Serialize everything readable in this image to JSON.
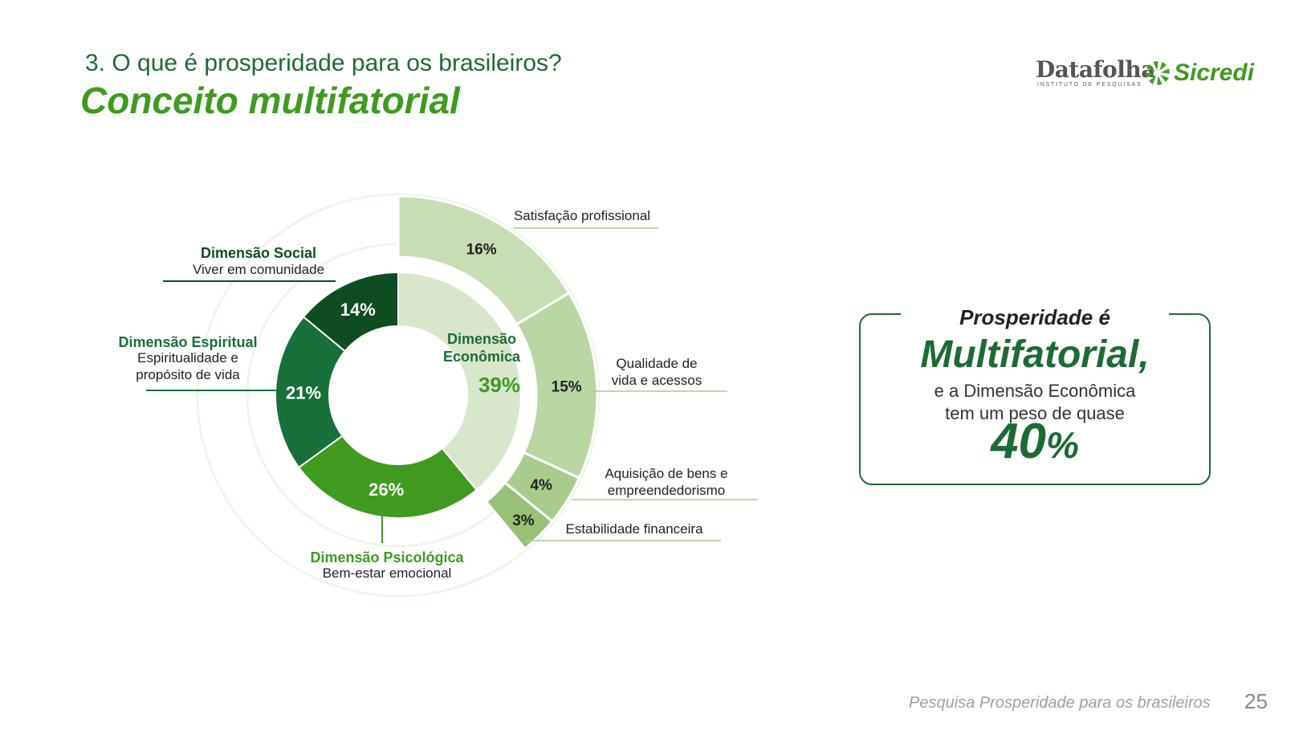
{
  "header": {
    "subtitle": "3. O que é prosperidade para os brasileiros?",
    "title": "Conceito multifatorial"
  },
  "logos": {
    "datafolha_name": "Datafolha",
    "datafolha_tagline": "INSTITUTO DE PESQUISAS",
    "sicredi_name": "Sicredi"
  },
  "colors": {
    "dark_green": "#1c6b35",
    "brand_green": "#3e9b1f",
    "social": "#0d4d21",
    "espiritual": "#17703a",
    "psicologica": "#3e9b1f",
    "economica": "#d8e7cc",
    "sub_slices": [
      "#c7ddb4",
      "#bad6a3",
      "#a9cc8d",
      "#97c176"
    ]
  },
  "chart_data": {
    "type": "pie",
    "inner_ring": [
      {
        "name": "Dimensão Econômica",
        "short": [
          "Dimensão",
          "Econômica"
        ],
        "value": 39,
        "label": "39%"
      },
      {
        "name": "Dimensão Psicológica",
        "description": "Bem-estar emocional",
        "value": 26,
        "label": "26%"
      },
      {
        "name": "Dimensão Espiritual",
        "description": [
          "Espiritualidade e",
          "propósito de vida"
        ],
        "value": 21,
        "label": "21%"
      },
      {
        "name": "Dimensão Social",
        "description": "Viver em comunidade",
        "value": 14,
        "label": "14%"
      }
    ],
    "outer_ring": [
      {
        "name": "Satisfação profissional",
        "value": 16,
        "label": "16%"
      },
      {
        "name": [
          "Qualidade de",
          "vida e acessos"
        ],
        "value": 15,
        "label": "15%"
      },
      {
        "name": [
          "Aquisição de bens e",
          "empreendedorismo"
        ],
        "value": 4,
        "label": "4%"
      },
      {
        "name": "Estabilidade financeira",
        "value": 3,
        "label": "3%"
      }
    ]
  },
  "callout": {
    "line1": "Prosperidade é",
    "line2": "Multifatorial,",
    "line3": "e a Dimensão Econômica",
    "line4": "tem um peso de quase",
    "value": "40",
    "sign": "%"
  },
  "footer": {
    "text": "Pesquisa Prosperidade para os brasileiros",
    "page": "25"
  }
}
